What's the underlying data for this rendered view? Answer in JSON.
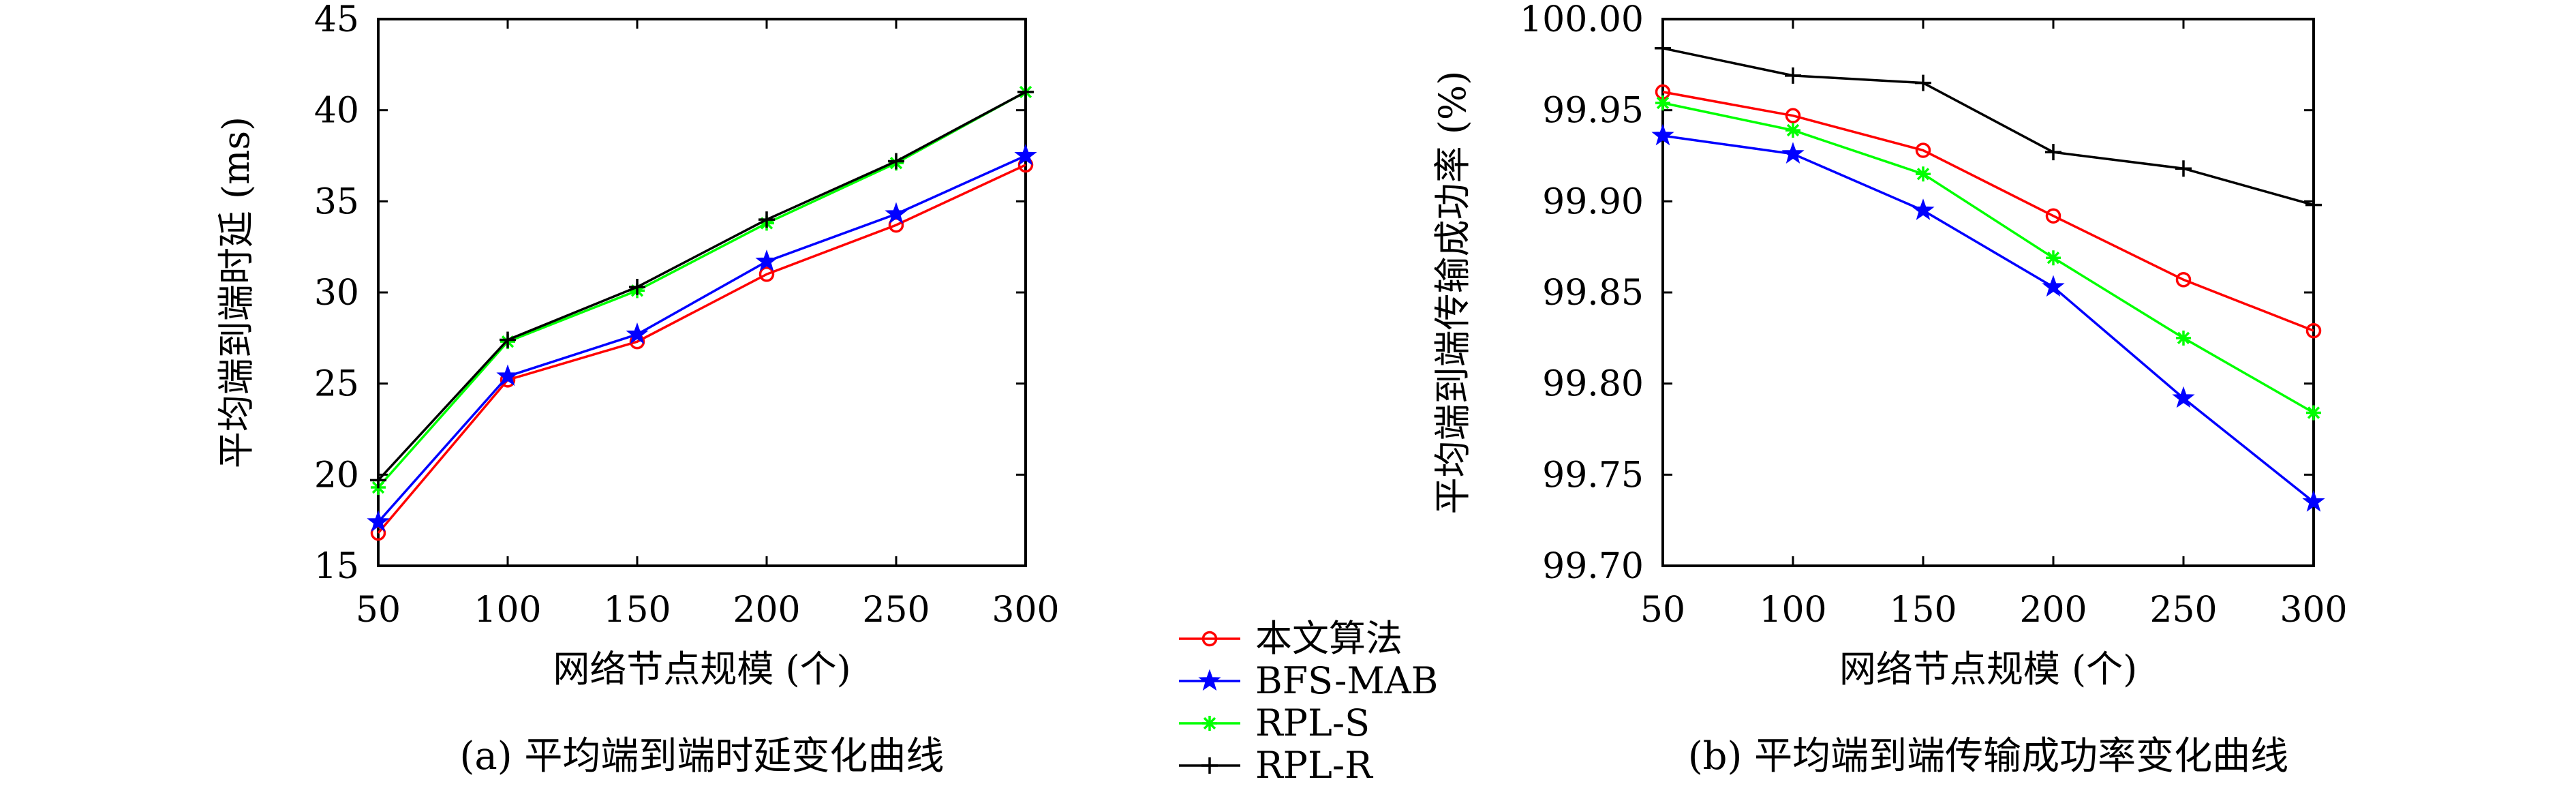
{
  "chart_data": [
    {
      "type": "line",
      "caption": "(a) 平均端到端时延变化曲线",
      "xlabel": "网络节点规模 (个)",
      "ylabel": "平均端到端时延 (ms)",
      "x": [
        50,
        100,
        150,
        200,
        250,
        300
      ],
      "xticks": [
        "50",
        "100",
        "150",
        "200",
        "250",
        "300"
      ],
      "xlim": [
        50,
        300
      ],
      "yticks": [
        "15",
        "20",
        "25",
        "30",
        "35",
        "40",
        "45"
      ],
      "ylim": [
        15,
        45
      ],
      "grid": false,
      "series": [
        {
          "name": "本文算法",
          "color": "#ff0000",
          "marker": "circle",
          "values": [
            16.8,
            25.2,
            27.3,
            31.0,
            33.7,
            37.0
          ]
        },
        {
          "name": "BFS-MAB",
          "color": "#0000ff",
          "marker": "star",
          "values": [
            17.4,
            25.4,
            27.7,
            31.7,
            34.3,
            37.5
          ]
        },
        {
          "name": "RPL-S",
          "color": "#00ff00",
          "marker": "asterisk",
          "values": [
            19.3,
            27.3,
            30.1,
            33.8,
            37.1,
            41.0
          ]
        },
        {
          "name": "RPL-R",
          "color": "#000000",
          "marker": "plus",
          "values": [
            19.7,
            27.4,
            30.3,
            34.0,
            37.2,
            41.0
          ]
        }
      ]
    },
    {
      "type": "line",
      "caption": "(b) 平均端到端传输成功率变化曲线",
      "xlabel": "网络节点规模 (个)",
      "ylabel": "平均端到端传输成功率 (%)",
      "x": [
        50,
        100,
        150,
        200,
        250,
        300
      ],
      "xticks": [
        "50",
        "100",
        "150",
        "200",
        "250",
        "300"
      ],
      "xlim": [
        50,
        300
      ],
      "yticks": [
        "99.70",
        "99.75",
        "99.80",
        "99.85",
        "99.90",
        "99.95",
        "100.00"
      ],
      "ylim": [
        99.7,
        100.0
      ],
      "grid": false,
      "series": [
        {
          "name": "本文算法",
          "color": "#ff0000",
          "marker": "circle",
          "values": [
            99.96,
            99.947,
            99.928,
            99.892,
            99.857,
            99.829
          ]
        },
        {
          "name": "BFS-MAB",
          "color": "#0000ff",
          "marker": "star",
          "values": [
            99.936,
            99.926,
            99.895,
            99.853,
            99.792,
            99.735
          ]
        },
        {
          "name": "RPL-S",
          "color": "#00ff00",
          "marker": "asterisk",
          "values": [
            99.954,
            99.939,
            99.915,
            99.869,
            99.825,
            99.784
          ]
        },
        {
          "name": "RPL-R",
          "color": "#000000",
          "marker": "plus",
          "values": [
            99.984,
            99.969,
            99.965,
            99.927,
            99.918,
            99.898
          ]
        }
      ]
    }
  ],
  "legend": {
    "placement": "bottom-center",
    "items": [
      {
        "label": "本文算法",
        "color": "#ff0000",
        "marker": "circle"
      },
      {
        "label": "BFS-MAB",
        "color": "#0000ff",
        "marker": "star"
      },
      {
        "label": "RPL-S",
        "color": "#00ff00",
        "marker": "asterisk"
      },
      {
        "label": "RPL-R",
        "color": "#000000",
        "marker": "plus"
      }
    ]
  }
}
